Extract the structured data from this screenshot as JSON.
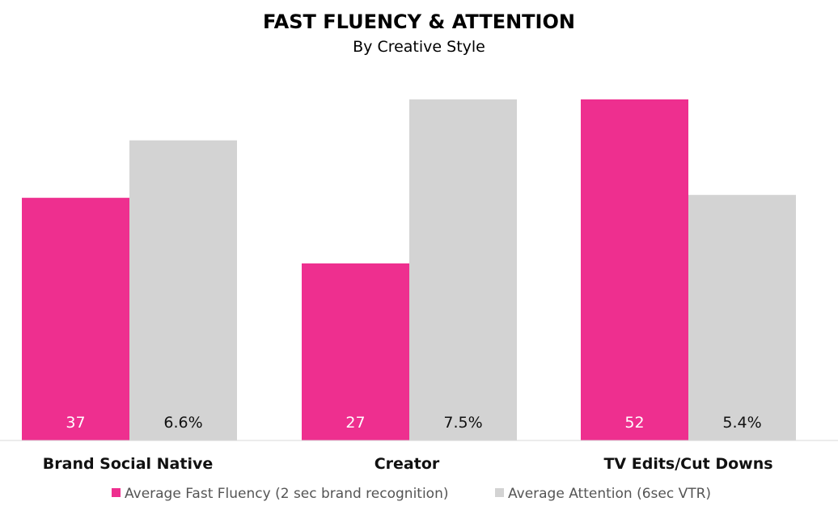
{
  "chart_data": {
    "type": "bar",
    "title": "FAST FLUENCY & ATTENTION",
    "subtitle": "By Creative Style",
    "categories": [
      "Brand Social Native",
      "Creator",
      "TV Edits/Cut Downs"
    ],
    "series": [
      {
        "name": "Average Fast Fluency (2 sec brand recognition)",
        "values": [
          37,
          27,
          52
        ],
        "labels": [
          "37",
          "27",
          "52"
        ],
        "color": "#EE2F8F",
        "label_color": "#ffffff"
      },
      {
        "name": "Average Attention (6sec VTR)",
        "values": [
          6.6,
          7.5,
          5.4
        ],
        "labels": [
          "6.6%",
          "7.5%",
          "5.4%"
        ],
        "color": "#D3D3D3",
        "label_color": "#111111"
      }
    ],
    "ylim": [
      0,
      55
    ],
    "grid": false,
    "legend": "bottom"
  }
}
